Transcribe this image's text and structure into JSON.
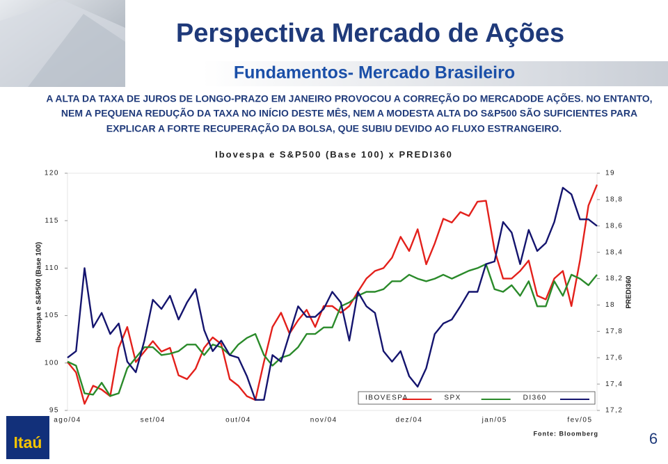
{
  "header": {
    "title": "Perspectiva Mercado de  Ações",
    "subtitle": "Fundamentos- Mercado Brasileiro"
  },
  "intro": {
    "lines": [
      "A ALTA DA TAXA DE JUROS DE LONGO-PRAZO EM JANEIRO PROVOCOU A CORREÇÃO DO MERCADODE AÇÕES. NO ENTANTO,",
      "NEM A PEQUENA REDUÇÃO DA TAXA NO INÍCIO DESTE MÊS, NEM A MODESTA ALTA DO S&P500 SÃO SUFICIENTES PARA",
      "EXPLICAR A FORTE RECUPERAÇÃO DA BOLSA, QUE SUBIU DEVIDO AO FLUXO ESTRANGEIRO."
    ]
  },
  "chart_data": {
    "type": "line",
    "title": "Ibovespa e S&P500 (Base 100) x PREDI360",
    "ylabel": "Ibovespa e S&P500 (Base 100)",
    "y2label": "PREDI360",
    "categories": [
      "ago/04",
      null,
      null,
      null,
      null,
      null,
      null,
      null,
      null,
      null,
      "set/04",
      null,
      null,
      null,
      null,
      null,
      null,
      null,
      null,
      null,
      "out/04",
      null,
      null,
      null,
      null,
      null,
      null,
      null,
      null,
      null,
      "nov/04",
      null,
      null,
      null,
      null,
      null,
      null,
      null,
      null,
      null,
      "dez/04",
      null,
      null,
      null,
      null,
      null,
      null,
      null,
      null,
      null,
      "jan/05",
      null,
      null,
      null,
      null,
      null,
      null,
      null,
      null,
      null,
      "fev/05",
      null,
      null
    ],
    "ylim": [
      95,
      120
    ],
    "yticks": [
      95,
      100,
      105,
      110,
      115,
      120
    ],
    "y2lim": [
      17.2,
      19
    ],
    "y2ticks": [
      {
        "value": 17.2,
        "label": "17,2"
      },
      {
        "value": 17.4,
        "label": "17,4"
      },
      {
        "value": 17.6,
        "label": "17,6"
      },
      {
        "value": 17.8,
        "label": "17,8"
      },
      18,
      {
        "value": 18.2,
        "label": "18,2"
      },
      {
        "value": 18.4,
        "label": "18,4"
      },
      {
        "value": 18.6,
        "label": "18,6"
      },
      {
        "value": 18.8,
        "label": "18,8"
      },
      19
    ],
    "legend": "bottom-right",
    "series": [
      {
        "name": "IBOVESPA",
        "color": "#e3201b",
        "values": [
          100.1,
          99.0,
          95.7,
          97.6,
          97.2,
          96.5,
          101.6,
          103.8,
          100.1,
          101.2,
          102.3,
          101.2,
          101.6,
          98.7,
          98.3,
          99.4,
          101.6,
          102.7,
          102.0,
          98.3,
          97.6,
          96.5,
          96.1,
          100.1,
          103.8,
          105.3,
          103.1,
          104.5,
          105.6,
          103.8,
          106.0,
          106.0,
          105.3,
          106.0,
          107.5,
          108.9,
          109.7,
          110.0,
          111.1,
          113.3,
          111.8,
          114.1,
          110.4,
          112.6,
          115.2,
          114.8,
          115.9,
          115.5,
          117.0,
          117.1,
          111.9,
          108.9,
          108.9,
          109.7,
          110.8,
          107.1,
          106.7,
          108.9,
          109.7,
          106.0,
          110.8,
          116.6,
          118.8
        ]
      },
      {
        "name": "SPX",
        "color": "#2a8a2a",
        "axis": "y2",
        "values": [
          17.57,
          17.54,
          17.33,
          17.32,
          17.41,
          17.31,
          17.33,
          17.52,
          17.6,
          17.68,
          17.68,
          17.62,
          17.63,
          17.65,
          17.7,
          17.7,
          17.62,
          17.7,
          17.68,
          17.62,
          17.7,
          17.75,
          17.78,
          17.62,
          17.54,
          17.6,
          17.62,
          17.68,
          17.78,
          17.78,
          17.83,
          17.83,
          17.99,
          18.02,
          18.07,
          18.1,
          18.1,
          18.12,
          18.18,
          18.18,
          18.23,
          18.2,
          18.18,
          18.2,
          18.23,
          18.2,
          18.23,
          18.26,
          18.28,
          18.31,
          18.12,
          18.1,
          18.15,
          18.07,
          18.18,
          17.99,
          17.99,
          18.18,
          18.07,
          18.23,
          18.2,
          18.15,
          18.23
        ]
      },
      {
        "name": "DI360",
        "color": "#14146e",
        "axis": "y2",
        "values": [
          17.6,
          17.65,
          18.28,
          17.83,
          17.94,
          17.78,
          17.86,
          17.57,
          17.49,
          17.73,
          18.04,
          17.97,
          18.07,
          17.89,
          18.02,
          18.12,
          17.81,
          17.65,
          17.73,
          17.62,
          17.6,
          17.46,
          17.28,
          17.28,
          17.62,
          17.57,
          17.78,
          17.99,
          17.91,
          17.91,
          17.97,
          18.1,
          18.02,
          17.73,
          18.1,
          17.99,
          17.94,
          17.65,
          17.57,
          17.65,
          17.46,
          17.38,
          17.52,
          17.78,
          17.86,
          17.89,
          17.99,
          18.1,
          18.1,
          18.31,
          18.33,
          18.63,
          18.55,
          18.31,
          18.57,
          18.41,
          18.47,
          18.63,
          18.89,
          18.84,
          18.65,
          18.65,
          18.6
        ]
      }
    ],
    "source": "Fonte: Bloomberg"
  },
  "footer": {
    "page": "6",
    "logo": "Itaú"
  }
}
